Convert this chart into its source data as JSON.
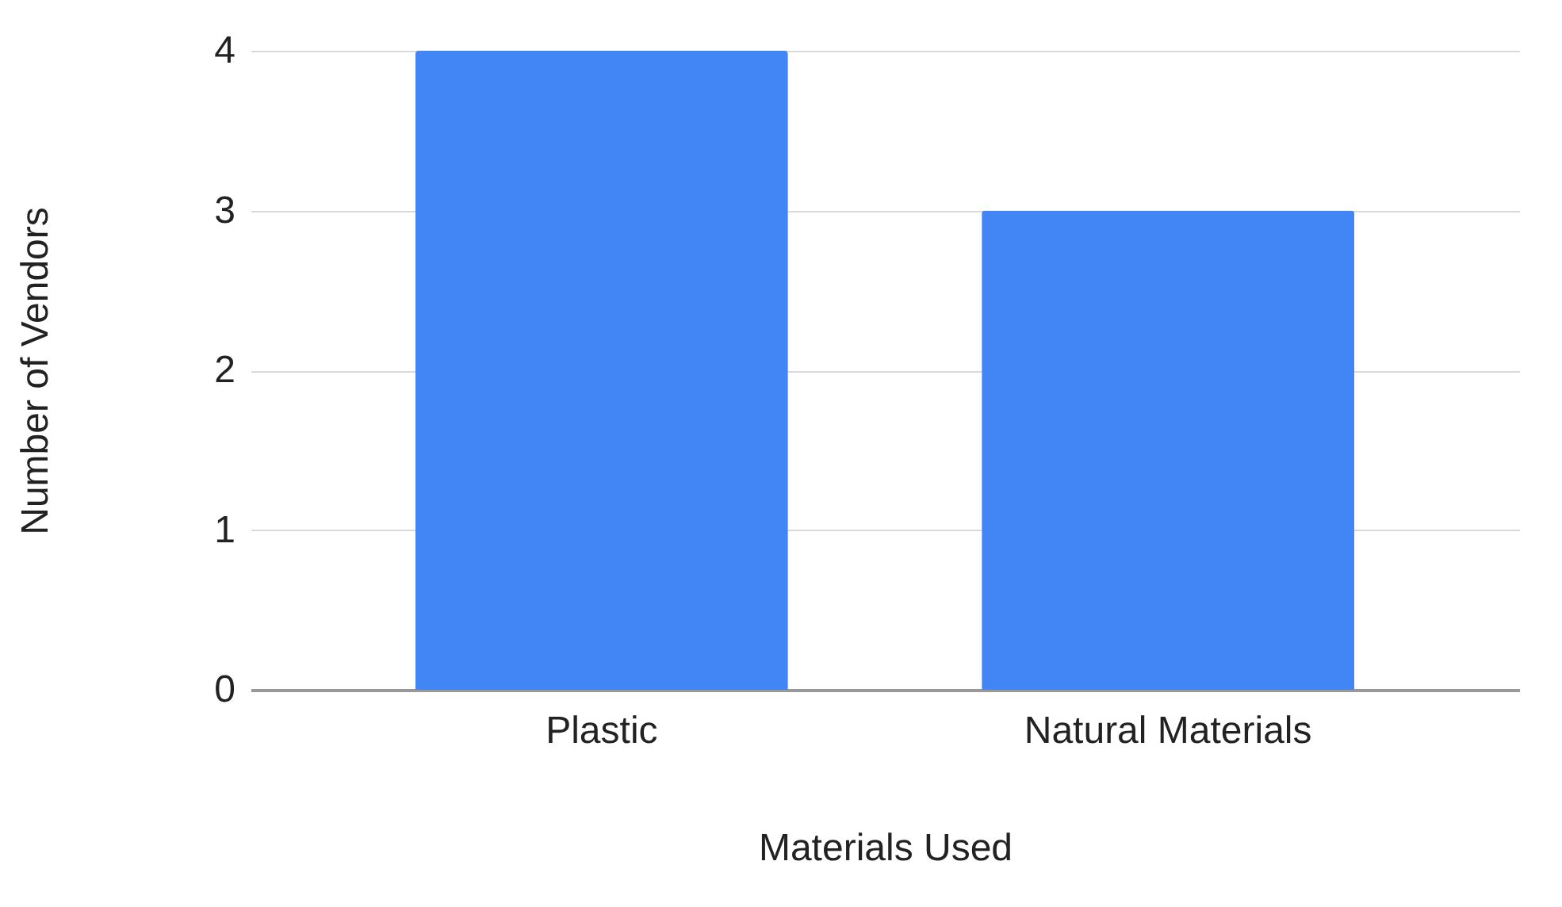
{
  "chart_data": {
    "type": "bar",
    "xlabel": "Materials Used",
    "ylabel": "Number of Vendors",
    "categories": [
      "Plastic",
      "Natural Materials"
    ],
    "values": [
      4,
      3
    ],
    "color": "#4285f4",
    "ylim": [
      0,
      4
    ],
    "yticks": [
      0,
      1,
      2,
      3,
      4
    ],
    "grid": "y"
  }
}
